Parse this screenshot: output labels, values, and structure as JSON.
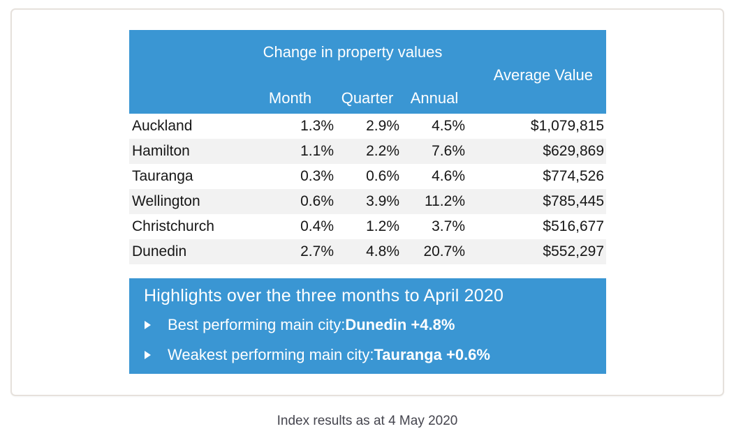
{
  "chart_data": {
    "type": "table",
    "title": "Change in property values",
    "columns": [
      "Month",
      "Quarter",
      "Annual",
      "Average Value"
    ],
    "rows": [
      {
        "city": "Auckland",
        "month": "1.3%",
        "quarter": "2.9%",
        "annual": "4.5%",
        "average_value": "$1,079,815"
      },
      {
        "city": "Hamilton",
        "month": "1.1%",
        "quarter": "2.2%",
        "annual": "7.6%",
        "average_value": "$629,869"
      },
      {
        "city": "Tauranga",
        "month": "0.3%",
        "quarter": "0.6%",
        "annual": "4.6%",
        "average_value": "$774,526"
      },
      {
        "city": "Wellington",
        "month": "0.6%",
        "quarter": "3.9%",
        "annual": "11.2%",
        "average_value": "$785,445"
      },
      {
        "city": "Christchurch",
        "month": "0.4%",
        "quarter": "1.2%",
        "annual": "3.7%",
        "average_value": "$516,677"
      },
      {
        "city": "Dunedin",
        "month": "2.7%",
        "quarter": "4.8%",
        "annual": "20.7%",
        "average_value": "$552,297"
      }
    ],
    "layout": {
      "zebra_striping": true,
      "header_background": "#3a96d3",
      "stripe_color": "#f2f2f2"
    }
  },
  "highlights": {
    "title": "Highlights over the three months to April 2020",
    "bullets": [
      {
        "label": "Best performing main city: ",
        "value": "Dunedin +4.8%"
      },
      {
        "label": "Weakest performing main city: ",
        "value": "Tauranga +0.6%"
      }
    ]
  },
  "caption": "Index results as at 4 May 2020",
  "colors": {
    "accent_blue": "#3a96d3",
    "row_stripe": "#f2f2f2",
    "card_border": "#e6e1dc",
    "caption_text": "#45454e"
  }
}
